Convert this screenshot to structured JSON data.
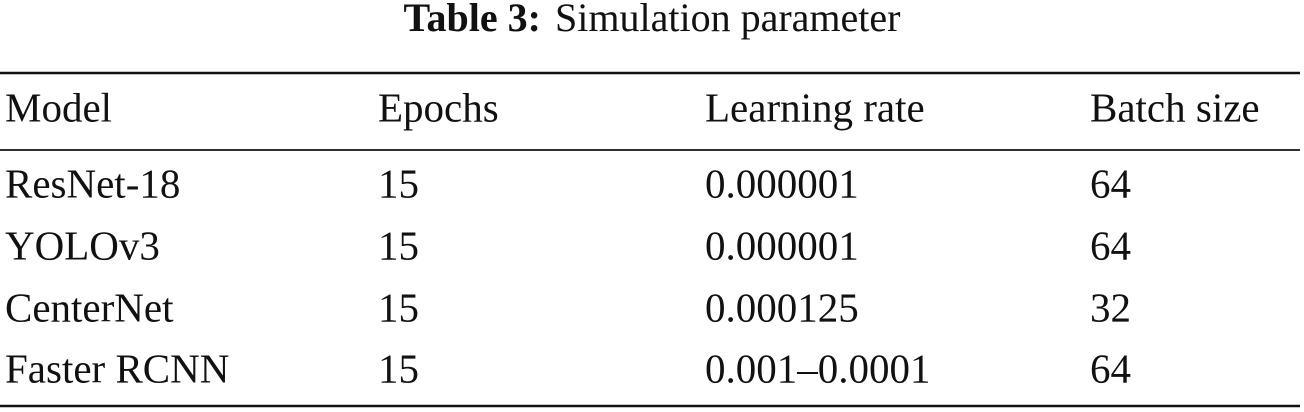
{
  "caption": {
    "label": "Table 3:",
    "text": "Simulation parameter"
  },
  "table": {
    "header": [
      "Model",
      "Epochs",
      "Learning rate",
      "Batch size"
    ],
    "rows": [
      [
        "ResNet-18",
        "15",
        "0.000001",
        "64"
      ],
      [
        "YOLOv3",
        "15",
        "0.000001",
        "64"
      ],
      [
        "CenterNet",
        "15",
        "0.000125",
        "32"
      ],
      [
        "Faster RCNN",
        "15",
        "0.001–0.0001",
        "64"
      ]
    ]
  }
}
